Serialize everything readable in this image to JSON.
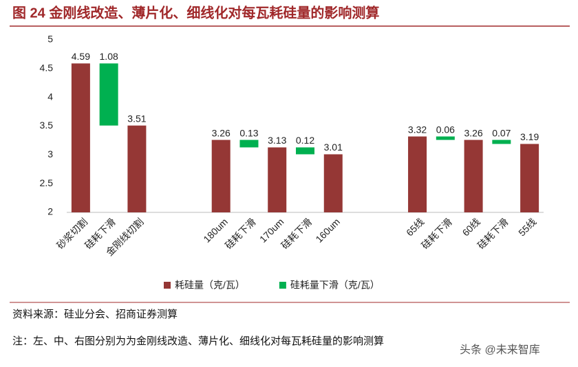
{
  "chart_data": {
    "type": "waterfall",
    "title": "图 24 金刚线改造、薄片化、细线化对每瓦耗硅量的影响测算",
    "categories": [
      "砂浆切割",
      "硅耗下滑",
      "金刚线切割",
      null,
      null,
      "180um",
      "硅耗下滑",
      "170um",
      "硅耗下滑",
      "160um",
      null,
      null,
      "65线",
      "硅耗下滑",
      "60线",
      "硅耗下滑",
      "55线"
    ],
    "series": [
      {
        "name": "耗硅量（克/瓦）",
        "color": "#953735",
        "role": "total",
        "values": [
          4.59,
          null,
          3.51,
          null,
          null,
          3.26,
          null,
          3.13,
          null,
          3.01,
          null,
          null,
          3.32,
          null,
          3.26,
          null,
          3.19
        ]
      },
      {
        "name": "硅耗量下滑（克/瓦）",
        "color": "#00b050",
        "role": "decrease",
        "values": [
          null,
          1.08,
          null,
          null,
          null,
          null,
          0.13,
          null,
          0.12,
          null,
          null,
          null,
          null,
          0.06,
          null,
          0.07,
          null
        ]
      }
    ],
    "ylim": [
      2,
      5
    ],
    "yticks": [
      2,
      2.5,
      3,
      3.5,
      4,
      4.5,
      5
    ],
    "grid": false,
    "legend": "bottom",
    "source": "资料来源：硅业分会、招商证券测算",
    "note": "注：左、中、右图分别为为金刚线改造、薄片化、细线化对每瓦耗硅量的影响测算",
    "watermark": "头条 @未来智库"
  }
}
